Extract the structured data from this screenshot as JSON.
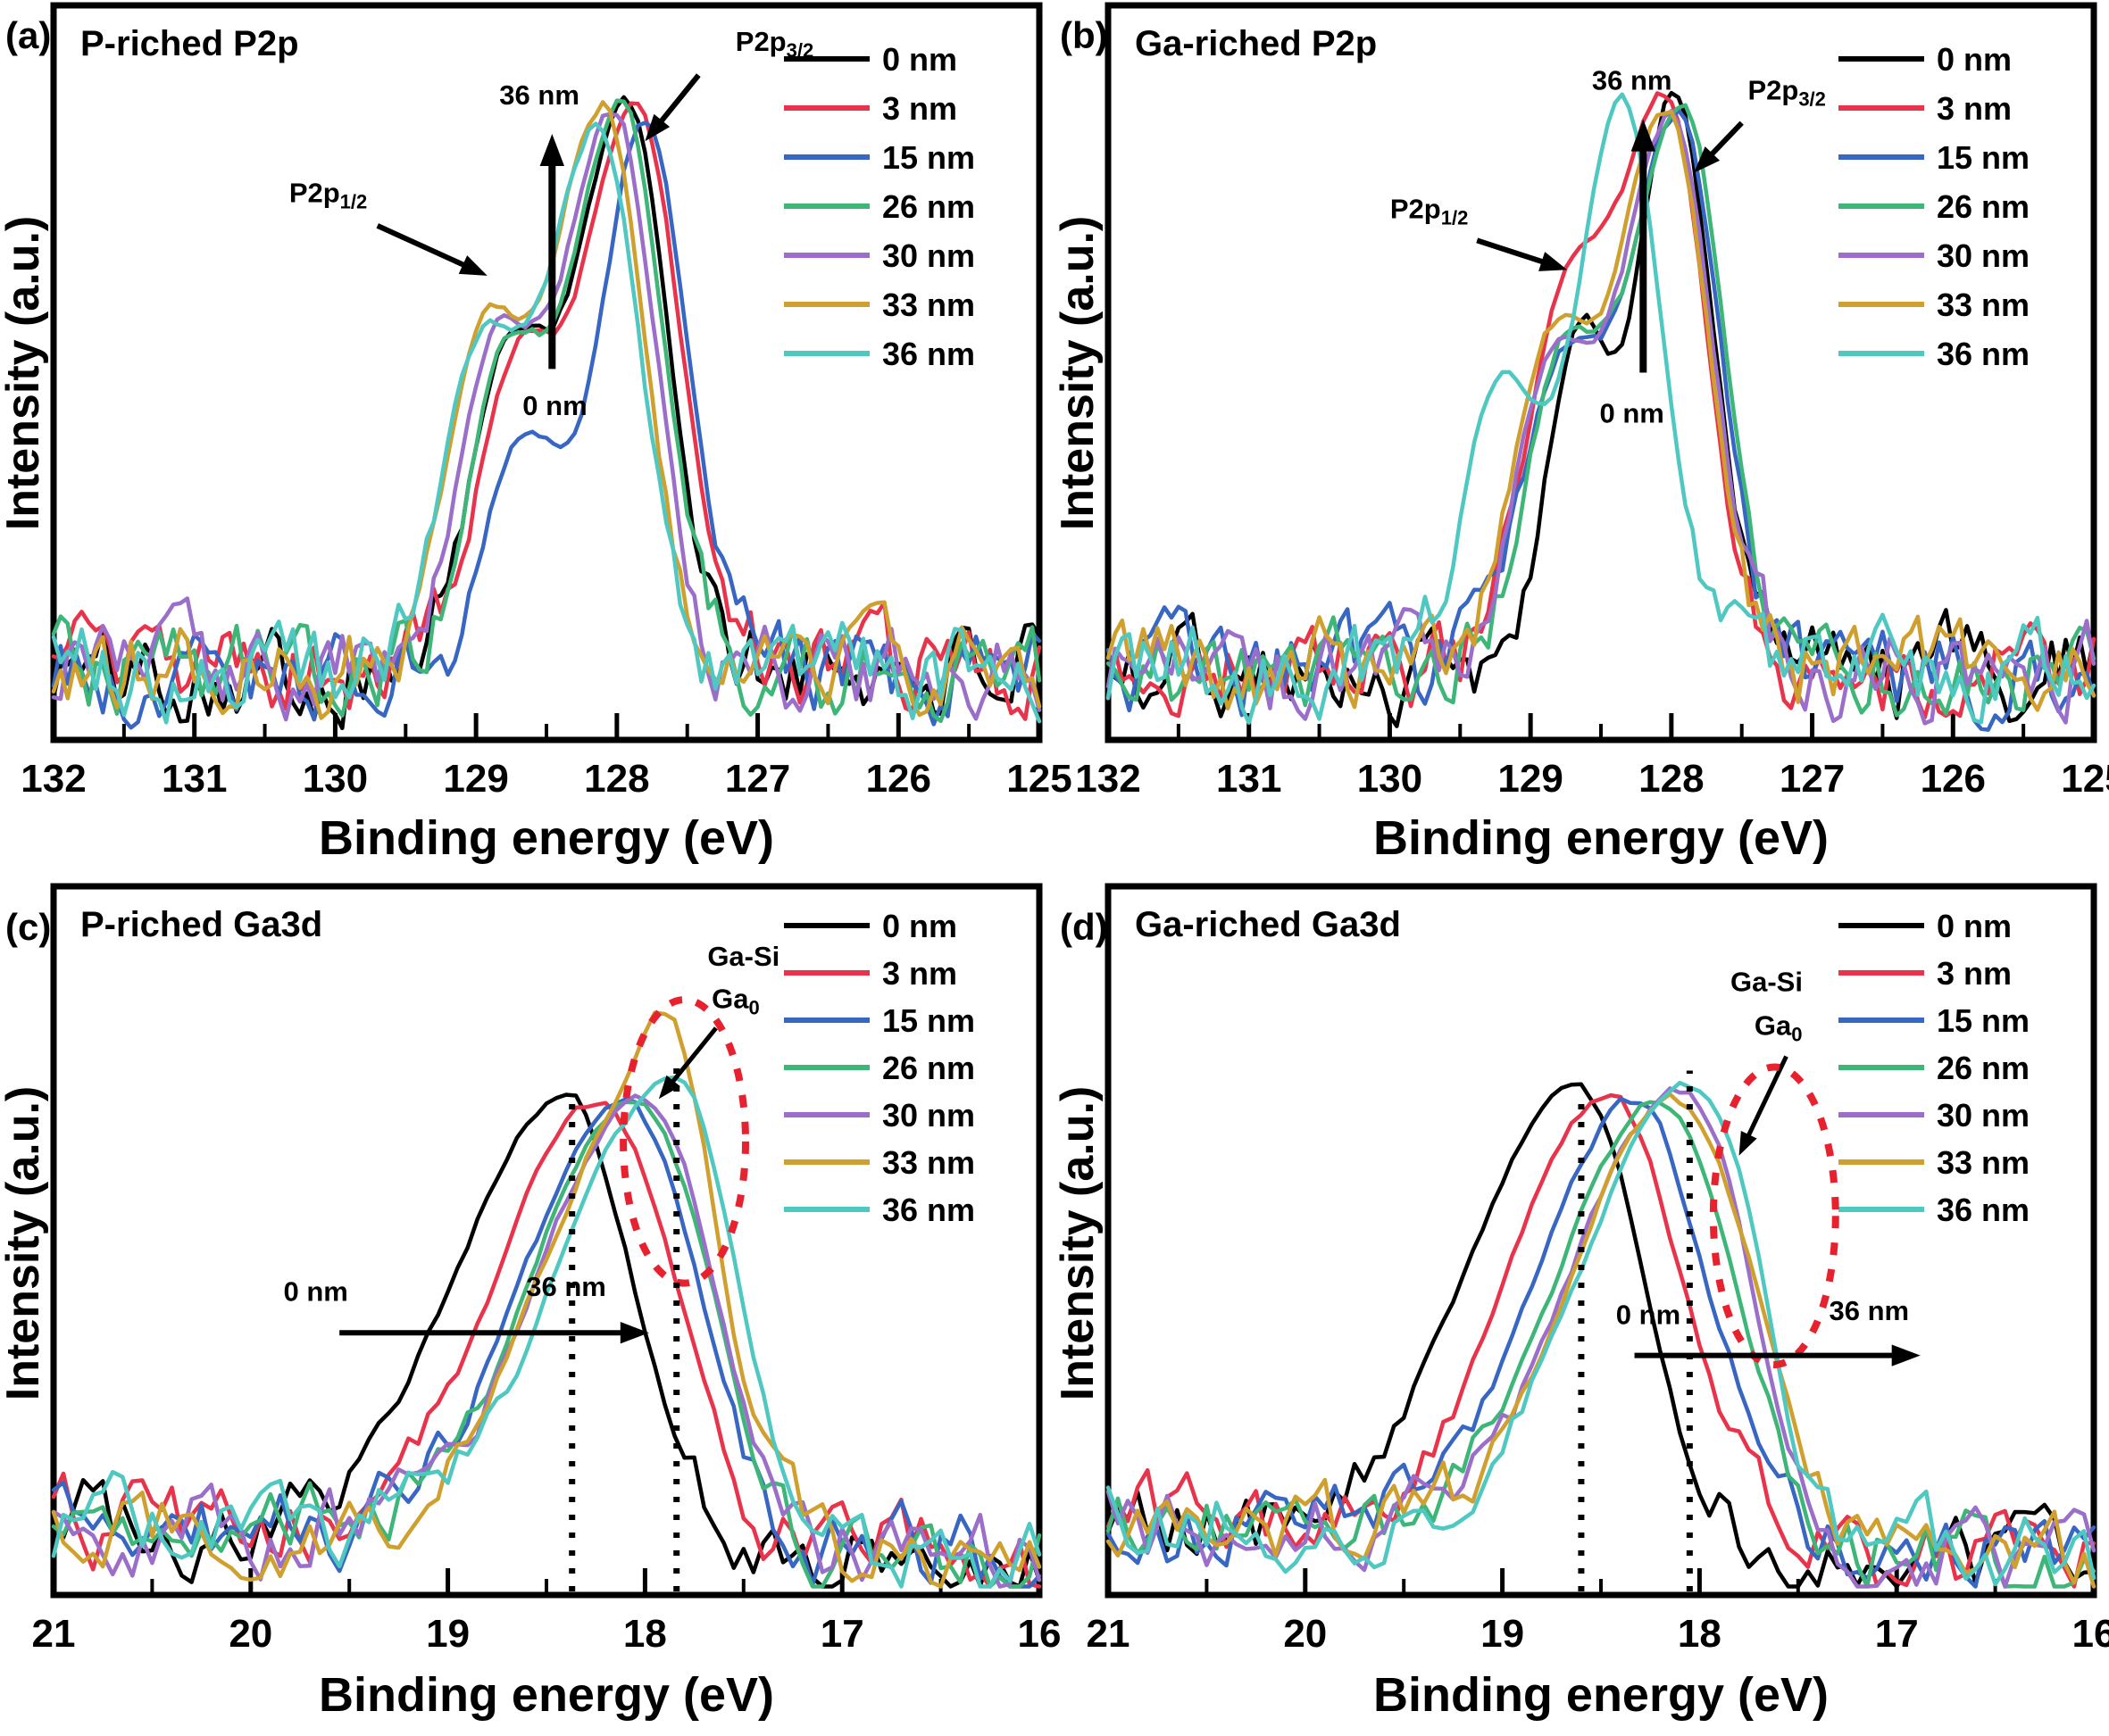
{
  "chart_data": {
    "type": "line",
    "x_axis_label": "Binding energy (eV)",
    "y_axis_label": "Intensity (a.u.)",
    "legend_labels": [
      "0 nm",
      "3 nm",
      "15 nm",
      "26 nm",
      "30 nm",
      "33 nm",
      "36 nm"
    ],
    "colors": {
      "0 nm": "#000000",
      "3 nm": "#e8334a",
      "15 nm": "#3766c3",
      "26 nm": "#3db678",
      "30 nm": "#9a6ec9",
      "33 nm": "#d0a02f",
      "36 nm": "#4fc8c2"
    },
    "red_accent": "#e8212e",
    "x_minor_interval": 0.5,
    "panels": [
      {
        "id": "a",
        "letter": "(a)",
        "title": "P-riched P2p",
        "kind": "P2p",
        "row": 0,
        "col": 0,
        "xlim": [
          132,
          125
        ],
        "x_ticks": [
          132,
          131,
          130,
          129,
          128,
          127,
          126,
          125
        ],
        "baseline": 0.095,
        "series": [
          {
            "label": "0 nm",
            "color": "#000000",
            "center": 127.93,
            "amp": 0.77,
            "shoulder_amp": 0.52,
            "seed": 101
          },
          {
            "label": "3 nm",
            "color": "#e8334a",
            "center": 127.88,
            "amp": 0.77,
            "shoulder_amp": 0.5,
            "sig_lo": 0.33,
            "seed": 102
          },
          {
            "label": "15 nm",
            "color": "#3766c3",
            "center": 127.8,
            "amp": 0.75,
            "shoulder_amp": 0.42,
            "sig_hi": 0.3,
            "seed": 103
          },
          {
            "label": "26 nm",
            "color": "#3db678",
            "center": 127.96,
            "amp": 0.77,
            "shoulder_amp": 0.5,
            "seed": 104
          },
          {
            "label": "30 nm",
            "color": "#9a6ec9",
            "center": 128.02,
            "amp": 0.76,
            "shoulder_amp": 0.54,
            "seed": 105
          },
          {
            "label": "33 nm",
            "color": "#d0a02f",
            "center": 128.1,
            "amp": 0.77,
            "shoulder_amp": 0.56,
            "seed": 106
          },
          {
            "label": "36 nm",
            "color": "#4fc8c2",
            "center": 128.13,
            "amp": 0.74,
            "shoulder_amp": 0.55,
            "seed": 107
          }
        ],
        "annotations": [
          {
            "t": "text",
            "text": "36 nm",
            "x": 128.55,
            "y": 0.135
          },
          {
            "t": "arrow",
            "x1": 128.46,
            "y1": 0.495,
            "x2": 128.46,
            "y2": 0.175,
            "w": 8,
            "head": 36
          },
          {
            "t": "text",
            "text": "0 nm",
            "x": 128.44,
            "y": 0.558
          },
          {
            "t": "text",
            "text": "P2p_{3/2}",
            "x": 126.88,
            "y": 0.062
          },
          {
            "t": "arrow",
            "x1": 127.42,
            "y1": 0.095,
            "x2": 127.8,
            "y2": 0.185,
            "w": 6,
            "head": 30
          },
          {
            "t": "text",
            "text": "P2p_{1/2}",
            "x": 130.05,
            "y": 0.268
          },
          {
            "t": "arrow",
            "x1": 129.7,
            "y1": 0.3,
            "x2": 128.92,
            "y2": 0.368,
            "w": 6,
            "head": 30
          }
        ]
      },
      {
        "id": "b",
        "letter": "(b)",
        "title": "Ga-riched P2p",
        "kind": "P2p",
        "row": 0,
        "col": 1,
        "xlim": [
          132,
          125
        ],
        "x_ticks": [
          132,
          131,
          130,
          129,
          128,
          127,
          126,
          125
        ],
        "baseline": 0.095,
        "series": [
          {
            "label": "0 nm",
            "color": "#000000",
            "center": 127.98,
            "amp": 0.78,
            "shoulder_amp": 0.58,
            "sig_hi": 0.26,
            "sig_lo": 0.28,
            "sh_off": 0.68,
            "sh_sig": 0.22,
            "seed": 201
          },
          {
            "label": "3 nm",
            "color": "#e8334a",
            "center": 128.04,
            "amp": 0.77,
            "shoulder_amp": 0.55,
            "sh_off": 0.75,
            "seed": 202
          },
          {
            "label": "15 nm",
            "color": "#3766c3",
            "center": 127.95,
            "amp": 0.76,
            "shoulder_amp": 0.5,
            "seed": 203
          },
          {
            "label": "26 nm",
            "color": "#3db678",
            "center": 127.92,
            "amp": 0.77,
            "shoulder_amp": 0.52,
            "seed": 204
          },
          {
            "label": "30 nm",
            "color": "#9a6ec9",
            "center": 128.0,
            "amp": 0.75,
            "shoulder_amp": 0.52,
            "seed": 205
          },
          {
            "label": "33 nm",
            "color": "#d0a02f",
            "center": 128.03,
            "amp": 0.76,
            "shoulder_amp": 0.54,
            "seed": 206
          },
          {
            "label": "36 nm",
            "color": "#4fc8c2",
            "center": 128.36,
            "amp": 0.78,
            "shoulder_amp": 0.5,
            "sig_hi": 0.3,
            "seed": 207
          }
        ],
        "annotations": [
          {
            "t": "text",
            "text": "36 nm",
            "x": 128.28,
            "y": 0.115
          },
          {
            "t": "arrow",
            "x1": 128.2,
            "y1": 0.5,
            "x2": 128.2,
            "y2": 0.155,
            "w": 8,
            "head": 36
          },
          {
            "t": "text",
            "text": "0 nm",
            "x": 128.28,
            "y": 0.568
          },
          {
            "t": "text",
            "text": "P2p_{3/2}",
            "x": 127.18,
            "y": 0.128
          },
          {
            "t": "arrow",
            "x1": 127.5,
            "y1": 0.16,
            "x2": 127.84,
            "y2": 0.228,
            "w": 6,
            "head": 30
          },
          {
            "t": "text",
            "text": "P2p_{1/2}",
            "x": 129.72,
            "y": 0.29
          },
          {
            "t": "arrow",
            "x1": 129.38,
            "y1": 0.32,
            "x2": 128.74,
            "y2": 0.36,
            "w": 6,
            "head": 30
          }
        ]
      },
      {
        "id": "c",
        "letter": "(c)",
        "title": "P-riched Ga3d",
        "kind": "Ga3d",
        "row": 1,
        "col": 0,
        "xlim": [
          21,
          16
        ],
        "x_ticks": [
          21,
          20,
          19,
          18,
          17,
          16
        ],
        "baseline_left": 0.105,
        "baseline_right": 0.05,
        "series": [
          {
            "label": "0 nm",
            "color": "#000000",
            "center": 18.4,
            "amp": 0.63,
            "sig_hi": 0.55,
            "seed": 301
          },
          {
            "label": "3 nm",
            "color": "#e8334a",
            "center": 18.24,
            "amp": 0.62,
            "bump_center": 17.8,
            "bump_amp": 0.05,
            "sig_lo": 0.36,
            "seed": 302
          },
          {
            "label": "15 nm",
            "color": "#3766c3",
            "center": 18.12,
            "amp": 0.61,
            "bump_center": 17.75,
            "bump_amp": 0.11,
            "seed": 303
          },
          {
            "label": "26 nm",
            "color": "#3db678",
            "center": 18.07,
            "amp": 0.62,
            "bump_center": 17.7,
            "bump_amp": 0.13,
            "seed": 304
          },
          {
            "label": "30 nm",
            "color": "#9a6ec9",
            "center": 18.05,
            "amp": 0.61,
            "bump_center": 17.72,
            "bump_amp": 0.15,
            "seed": 305
          },
          {
            "label": "33 nm",
            "color": "#d0a02f",
            "center": 18.03,
            "amp": 0.62,
            "bump_center": 17.8,
            "bump_amp": 0.34,
            "seed": 306
          },
          {
            "label": "36 nm",
            "color": "#4fc8c2",
            "center": 17.97,
            "amp": 0.6,
            "bump_center": 17.68,
            "bump_amp": 0.28,
            "seed": 307
          }
        ],
        "annotations": [
          {
            "t": "text",
            "text": "Ga-Si",
            "x": 17.5,
            "y": 0.112
          },
          {
            "t": "text",
            "text": "Ga_{0}",
            "x": 17.54,
            "y": 0.172
          },
          {
            "t": "arrow",
            "x1": 17.64,
            "y1": 0.2,
            "x2": 17.93,
            "y2": 0.3,
            "w": 5,
            "head": 26
          },
          {
            "t": "ellipse",
            "cx": 17.8,
            "cy": 0.36,
            "rx": 0.31,
            "ry": 0.2
          },
          {
            "t": "vline",
            "x": 18.37,
            "top": 0.3
          },
          {
            "t": "vline",
            "x": 17.84,
            "top": 0.245
          },
          {
            "t": "arrow",
            "x1": 19.55,
            "y1": 0.63,
            "x2": 17.98,
            "y2": 0.63,
            "w": 6,
            "head": 32
          },
          {
            "t": "text",
            "text": "0 nm",
            "x": 19.67,
            "y": 0.585
          },
          {
            "t": "text",
            "text": "36 nm",
            "x": 18.4,
            "y": 0.578
          }
        ]
      },
      {
        "id": "d",
        "letter": "(d)",
        "title": "Ga-riched Ga3d",
        "kind": "Ga3d",
        "row": 1,
        "col": 1,
        "xlim": [
          21,
          16
        ],
        "x_ticks": [
          21,
          20,
          19,
          18,
          17,
          16
        ],
        "baseline_left": 0.105,
        "baseline_right": 0.05,
        "series": [
          {
            "label": "0 nm",
            "color": "#000000",
            "center": 18.62,
            "amp": 0.63,
            "sig_hi": 0.55,
            "seed": 401
          },
          {
            "label": "3 nm",
            "color": "#e8334a",
            "center": 18.46,
            "amp": 0.63,
            "bump_center": 17.72,
            "bump_amp": 0.05,
            "sig_lo": 0.36,
            "seed": 402
          },
          {
            "label": "15 nm",
            "color": "#3766c3",
            "center": 18.32,
            "amp": 0.62,
            "bump_center": 17.74,
            "bump_amp": 0.09,
            "seed": 403
          },
          {
            "label": "26 nm",
            "color": "#3db678",
            "center": 18.21,
            "amp": 0.62,
            "bump_center": 17.76,
            "bump_amp": 0.11,
            "seed": 404
          },
          {
            "label": "30 nm",
            "color": "#9a6ec9",
            "center": 18.16,
            "amp": 0.61,
            "bump_center": 17.84,
            "bump_amp": 0.2,
            "seed": 405
          },
          {
            "label": "33 nm",
            "color": "#d0a02f",
            "center": 18.15,
            "amp": 0.62,
            "bump_center": 17.72,
            "bump_amp": 0.18,
            "seed": 406
          },
          {
            "label": "36 nm",
            "color": "#4fc8c2",
            "center": 18.12,
            "amp": 0.61,
            "bump_center": 17.78,
            "bump_amp": 0.3,
            "sig_lo": 0.3,
            "seed": 407
          }
        ],
        "annotations": [
          {
            "t": "text",
            "text": "Ga-Si",
            "x": 17.66,
            "y": 0.148
          },
          {
            "t": "text",
            "text": "Ga_{0}",
            "x": 17.6,
            "y": 0.21
          },
          {
            "t": "arrow",
            "x1": 17.56,
            "y1": 0.24,
            "x2": 17.8,
            "y2": 0.38,
            "w": 5,
            "head": 26
          },
          {
            "t": "ellipse",
            "cx": 17.62,
            "cy": 0.465,
            "rx": 0.31,
            "ry": 0.21
          },
          {
            "t": "vline",
            "x": 18.6,
            "top": 0.295
          },
          {
            "t": "vline",
            "x": 18.05,
            "top": 0.26
          },
          {
            "t": "arrow",
            "x1": 18.33,
            "y1": 0.662,
            "x2": 16.88,
            "y2": 0.662,
            "w": 6,
            "head": 32
          },
          {
            "t": "text",
            "text": "0 nm",
            "x": 18.26,
            "y": 0.618
          },
          {
            "t": "text",
            "text": "36 nm",
            "x": 17.14,
            "y": 0.612
          }
        ]
      }
    ]
  }
}
